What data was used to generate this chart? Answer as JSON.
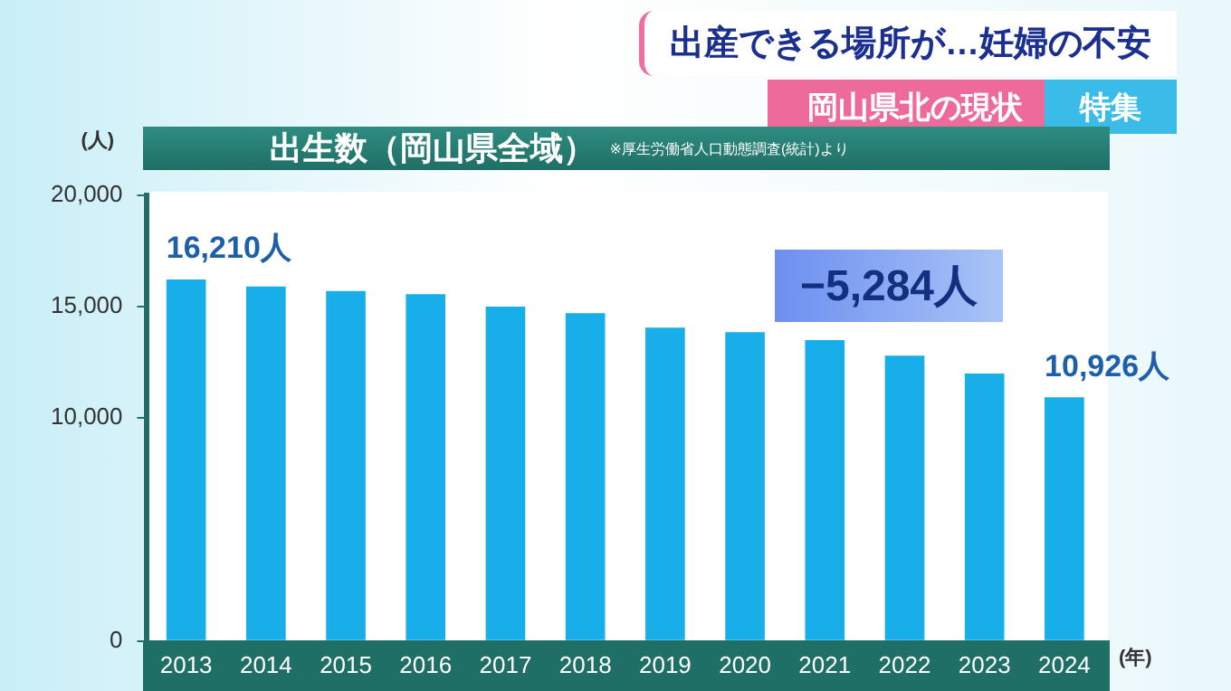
{
  "chart_data": {
    "type": "bar",
    "title": "出生数（岡山県全域）",
    "subtitle": "出産できる場所が…妊婦の不安",
    "xlabel": "(年)",
    "ylabel": "(人)",
    "categories": [
      "2013",
      "2014",
      "2015",
      "2016",
      "2017",
      "2018",
      "2019",
      "2020",
      "2021",
      "2022",
      "2023",
      "2024"
    ],
    "values": [
      16210,
      15900,
      15700,
      15550,
      15000,
      14700,
      14050,
      13850,
      13500,
      12800,
      12000,
      10926
    ],
    "color": "#18aeea",
    "value_labels": [
      "16,210人",
      null,
      null,
      null,
      null,
      null,
      null,
      null,
      null,
      null,
      null,
      "10,926人"
    ],
    "ylim": [
      0,
      20000
    ],
    "yticks": [
      0,
      {
        "value": 10000,
        "label": "10,000"
      },
      {
        "value": 15000,
        "label": "15,000"
      },
      {
        "value": 20000,
        "label": "20,000"
      }
    ],
    "grid": false,
    "legend": false,
    "annotations": [
      "−5,284人",
      "※厚生労働省人口動態調査(統計)より",
      "岡山県北の現状",
      "特集"
    ]
  }
}
